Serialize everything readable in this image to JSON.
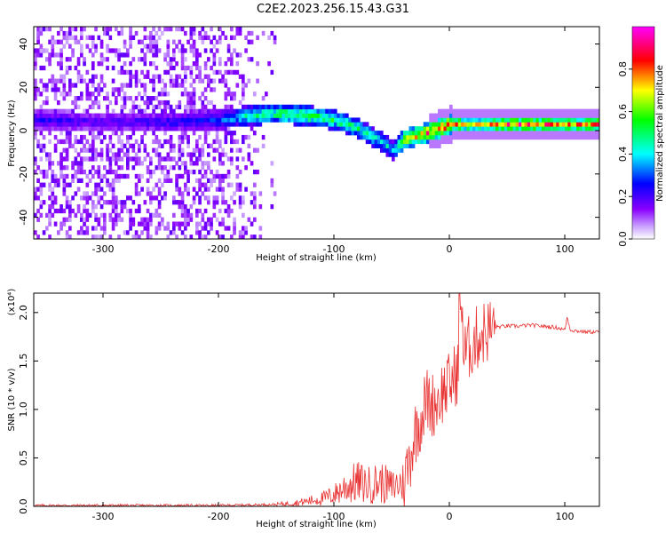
{
  "title": "C2E2.2023.256.15.43.G31",
  "chart_data": [
    {
      "type": "heatmap",
      "xlabel": "Height of straight line (km)",
      "ylabel": "Frequency (Hz)",
      "xlim": [
        -360,
        130
      ],
      "ylim": [
        -50,
        48
      ],
      "xticks": [
        "-300",
        "-200",
        "-100",
        "0",
        "100"
      ],
      "xtick_values": [
        -300,
        -200,
        -100,
        0,
        100
      ],
      "yticks": [
        "-40",
        "-20",
        "0",
        "20",
        "40"
      ],
      "ytick_values": [
        -40,
        -20,
        0,
        20,
        40
      ],
      "colorbar": {
        "label": "Normalized spectral amplitude",
        "ticks": [
          "0.0",
          "0.2",
          "0.4",
          "0.6",
          "0.8"
        ],
        "tick_values": [
          0.0,
          0.2,
          0.4,
          0.6,
          0.8
        ],
        "range": [
          0,
          1
        ],
        "colors": [
          "#ffffff",
          "#8a00ff",
          "#0000ff",
          "#00ffff",
          "#00ff00",
          "#ffff00",
          "#ff0000",
          "#ff00ff"
        ]
      },
      "ridge": {
        "x": [
          -350,
          -300,
          -250,
          -200,
          -175,
          -150,
          -125,
          -100,
          -80,
          -60,
          -50,
          -40,
          -20,
          0,
          20,
          60,
          100,
          130
        ],
        "y": [
          4,
          3,
          3,
          4,
          6,
          7,
          6,
          4,
          0,
          -6,
          -10,
          -5,
          -2,
          2,
          2,
          2,
          2,
          2
        ],
        "amplitude": [
          0.25,
          0.2,
          0.25,
          0.3,
          0.5,
          0.55,
          0.6,
          0.55,
          0.5,
          0.45,
          0.4,
          0.7,
          0.85,
          0.9,
          0.7,
          0.9,
          0.8,
          0.85
        ]
      }
    },
    {
      "type": "line",
      "xlabel": "Height of straight line (km)",
      "ylabel": "SNR (10 * v/v)",
      "y_multiplier": "(x10⁴)",
      "xlim": [
        -360,
        130
      ],
      "ylim": [
        0,
        2.2
      ],
      "xticks": [
        "-300",
        "-200",
        "-100",
        "0",
        "100"
      ],
      "xtick_values": [
        -300,
        -200,
        -100,
        0,
        100
      ],
      "yticks": [
        "0.0",
        "0.5",
        "1.0",
        "1.5",
        "2.0"
      ],
      "ytick_values": [
        0.0,
        0.5,
        1.0,
        1.5,
        2.0
      ],
      "color": "#e83030",
      "series": [
        {
          "x": [
            -360,
            -300,
            -250,
            -200,
            -150,
            -130,
            -110,
            -100,
            -90,
            -80,
            -70,
            -60,
            -50,
            -40,
            -35,
            -30,
            -25,
            -20,
            -15,
            -10,
            -5,
            0,
            5,
            10,
            15,
            20,
            25,
            30,
            40,
            50,
            60,
            70,
            80,
            90,
            95,
            100,
            102,
            105,
            110,
            120,
            130
          ],
          "y": [
            0.01,
            0.01,
            0.01,
            0.01,
            0.02,
            0.04,
            0.08,
            0.12,
            0.2,
            0.25,
            0.22,
            0.25,
            0.2,
            0.25,
            0.45,
            0.75,
            0.9,
            1.1,
            1.05,
            1.1,
            1.2,
            1.25,
            1.35,
            1.5,
            1.6,
            1.68,
            1.75,
            1.8,
            1.85,
            1.86,
            1.86,
            1.87,
            1.86,
            1.85,
            1.84,
            1.82,
            1.95,
            1.82,
            1.81,
            1.8,
            1.8
          ]
        }
      ]
    }
  ]
}
